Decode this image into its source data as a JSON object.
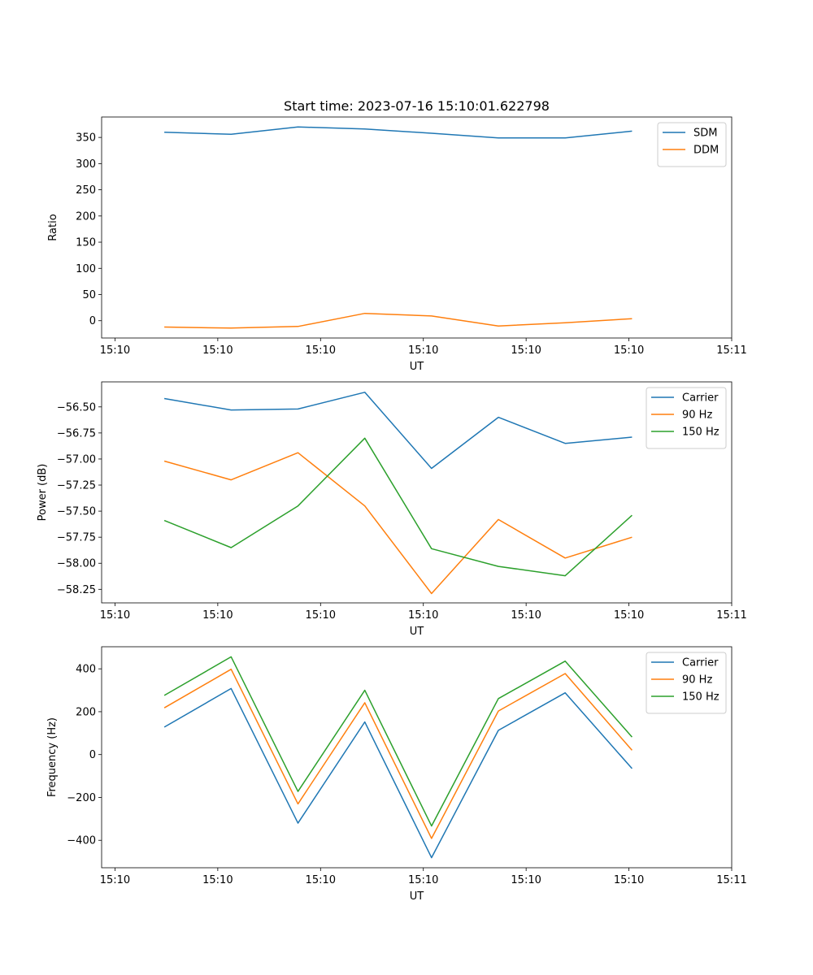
{
  "figure": {
    "title": "Start time: 2023-07-16 15:10:01.622798"
  },
  "chart_data": [
    {
      "type": "line",
      "title": "Start time: 2023-07-16 15:10:01.622798",
      "xlabel": "UT",
      "ylabel": "Ratio",
      "x_ticks": [
        0,
        1,
        2,
        3,
        4,
        5,
        6
      ],
      "x_tick_labels": [
        "15:10",
        "15:10",
        "15:10",
        "15:10",
        "15:10",
        "15:10",
        "15:11"
      ],
      "xlim": [
        -0.13,
        6.0
      ],
      "y_ticks": [
        0,
        50,
        100,
        150,
        200,
        250,
        300,
        350
      ],
      "y_tick_labels": [
        "0",
        "50",
        "100",
        "150",
        "200",
        "250",
        "300",
        "350"
      ],
      "ylim": [
        -33,
        389
      ],
      "legend": "top-right",
      "x": [
        0.48,
        1.13,
        1.78,
        2.43,
        3.08,
        3.73,
        4.38,
        5.03
      ],
      "series": [
        {
          "name": "SDM",
          "color": "#1f77b4",
          "values": [
            360,
            356,
            370,
            366,
            358,
            349,
            349,
            362
          ]
        },
        {
          "name": "DDM",
          "color": "#ff7f0e",
          "values": [
            -12,
            -14,
            -11,
            14,
            9,
            -10,
            -4,
            4
          ]
        }
      ]
    },
    {
      "type": "line",
      "xlabel": "UT",
      "ylabel": "Power (dB)",
      "x_ticks": [
        0,
        1,
        2,
        3,
        4,
        5,
        6
      ],
      "x_tick_labels": [
        "15:10",
        "15:10",
        "15:10",
        "15:10",
        "15:10",
        "15:10",
        "15:11"
      ],
      "xlim": [
        -0.13,
        6.0
      ],
      "y_ticks": [
        -58.25,
        -58.0,
        -57.75,
        -57.5,
        -57.25,
        -57.0,
        -56.75,
        -56.5
      ],
      "y_tick_labels": [
        "−58.25",
        "−58.00",
        "−57.75",
        "−57.50",
        "−57.25",
        "−57.00",
        "−56.75",
        "−56.50"
      ],
      "ylim": [
        -58.38,
        -56.26
      ],
      "legend": "top-right",
      "x": [
        0.48,
        1.13,
        1.78,
        2.43,
        3.08,
        3.73,
        4.38,
        5.03
      ],
      "series": [
        {
          "name": "Carrier",
          "color": "#1f77b4",
          "values": [
            -56.42,
            -56.53,
            -56.52,
            -56.36,
            -57.09,
            -56.6,
            -56.85,
            -56.79
          ]
        },
        {
          "name": "90 Hz",
          "color": "#ff7f0e",
          "values": [
            -57.02,
            -57.2,
            -56.94,
            -57.45,
            -58.29,
            -57.58,
            -57.95,
            -57.75
          ]
        },
        {
          "name": "150 Hz",
          "color": "#2ca02c",
          "values": [
            -57.59,
            -57.85,
            -57.45,
            -56.8,
            -57.86,
            -58.03,
            -58.12,
            -57.54
          ]
        }
      ]
    },
    {
      "type": "line",
      "xlabel": "UT",
      "ylabel": "Frequency (Hz)",
      "x_ticks": [
        0,
        1,
        2,
        3,
        4,
        5,
        6
      ],
      "x_tick_labels": [
        "15:10",
        "15:10",
        "15:10",
        "15:10",
        "15:10",
        "15:10",
        "15:11"
      ],
      "xlim": [
        -0.13,
        6.0
      ],
      "y_ticks": [
        -400,
        -200,
        0,
        200,
        400
      ],
      "y_tick_labels": [
        "−400",
        "−200",
        "0",
        "200",
        "400"
      ],
      "ylim": [
        -528,
        503
      ],
      "legend": "top-right",
      "x": [
        0.48,
        1.13,
        1.78,
        2.43,
        3.08,
        3.73,
        4.38,
        5.03
      ],
      "series": [
        {
          "name": "Carrier",
          "color": "#1f77b4",
          "values": [
            128,
            308,
            -320,
            152,
            -481,
            113,
            288,
            -65
          ]
        },
        {
          "name": "90 Hz",
          "color": "#ff7f0e",
          "values": [
            218,
            398,
            -230,
            242,
            -391,
            203,
            378,
            20
          ]
        },
        {
          "name": "150 Hz",
          "color": "#2ca02c",
          "values": [
            276,
            456,
            -172,
            300,
            -333,
            261,
            436,
            82
          ]
        }
      ]
    }
  ]
}
